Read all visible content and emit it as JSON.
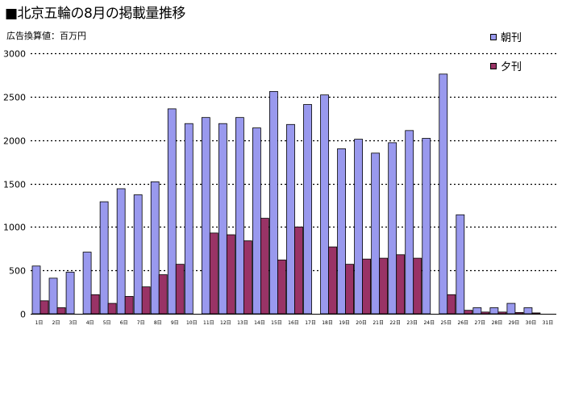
{
  "title": "■北京五輪の8月の掲載量推移",
  "unit_label": "広告換算値：百万円",
  "chart_data": {
    "type": "bar",
    "categories": [
      "1日",
      "2日",
      "3日",
      "4日",
      "5日",
      "6日",
      "7日",
      "8日",
      "9日",
      "10日",
      "11日",
      "12日",
      "13日",
      "14日",
      "15日",
      "16日",
      "17日",
      "18日",
      "19日",
      "20日",
      "21日",
      "22日",
      "23日",
      "24日",
      "25日",
      "26日",
      "27日",
      "28日",
      "29日",
      "30日",
      "31日"
    ],
    "series": [
      {
        "name": "朝刊",
        "color": "#9999ee",
        "values": [
          550,
          410,
          480,
          710,
          1290,
          1440,
          1370,
          1520,
          2360,
          2190,
          2260,
          2190,
          2260,
          2140,
          2560,
          2180,
          2410,
          2520,
          1900,
          2010,
          1850,
          1970,
          2110,
          2020,
          2760,
          1140,
          70,
          70,
          120,
          70,
          0
        ]
      },
      {
        "name": "夕刊",
        "color": "#993366",
        "values": [
          150,
          70,
          0,
          220,
          120,
          200,
          310,
          450,
          570,
          0,
          930,
          910,
          840,
          1100,
          620,
          1000,
          0,
          770,
          570,
          630,
          640,
          680,
          640,
          0,
          220,
          40,
          20,
          20,
          15,
          10,
          0
        ]
      }
    ],
    "yticks": [
      0,
      500,
      1000,
      1500,
      2000,
      2500,
      3000
    ],
    "ylim": [
      0,
      3000
    ],
    "grid": true,
    "legend": "top-right"
  }
}
